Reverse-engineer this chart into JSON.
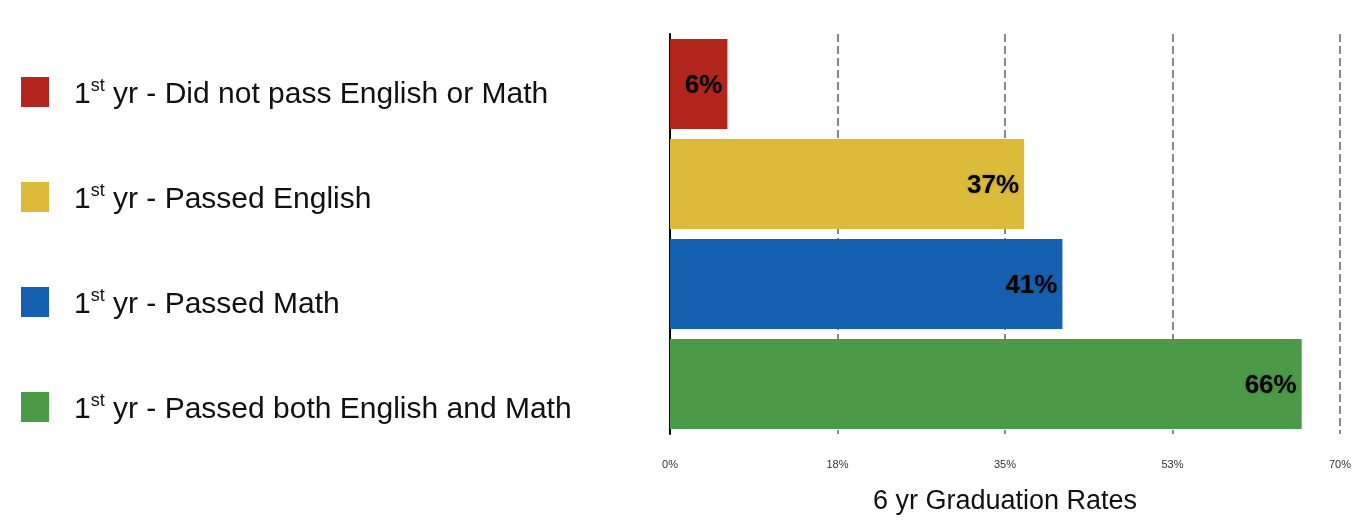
{
  "chart_data": {
    "type": "bar",
    "orientation": "horizontal",
    "xlabel": "6 yr Graduation Rates",
    "categories": [
      null,
      null,
      null,
      null
    ],
    "series": [
      {
        "name": "1$^{st}$ yr - Did not pass English or Math",
        "color": "#b3261e",
        "values": [
          6,
          null,
          null,
          null
        ],
        "value_labels": [
          "6%",
          null,
          null,
          null
        ]
      },
      {
        "name": "1$^{st}$ yr - Passed English",
        "color": "#dcbb3a",
        "values": [
          null,
          37,
          null,
          null
        ],
        "value_labels": [
          null,
          "37%",
          null,
          null
        ]
      },
      {
        "name": "1$^{st}$ yr - Passed Math",
        "color": "#1560b0",
        "values": [
          null,
          null,
          41,
          null
        ],
        "value_labels": [
          null,
          null,
          "41%",
          null
        ]
      },
      {
        "name": "1$^{st}$ yr - Passed both English and Math",
        "color": "#4b9a48",
        "values": [
          null,
          null,
          null,
          66
        ],
        "value_labels": [
          null,
          null,
          null,
          "66%"
        ]
      }
    ],
    "xlim": [
      0,
      70
    ],
    "xticks": [
      {
        "value": 0,
        "label": "0%"
      },
      {
        "value": 17.5,
        "label": "18%"
      },
      {
        "value": 35,
        "label": "35%"
      },
      {
        "value": 52.5,
        "label": "53%"
      },
      {
        "value": 70,
        "label": "70%"
      }
    ],
    "grid": "x",
    "legend": "left"
  }
}
